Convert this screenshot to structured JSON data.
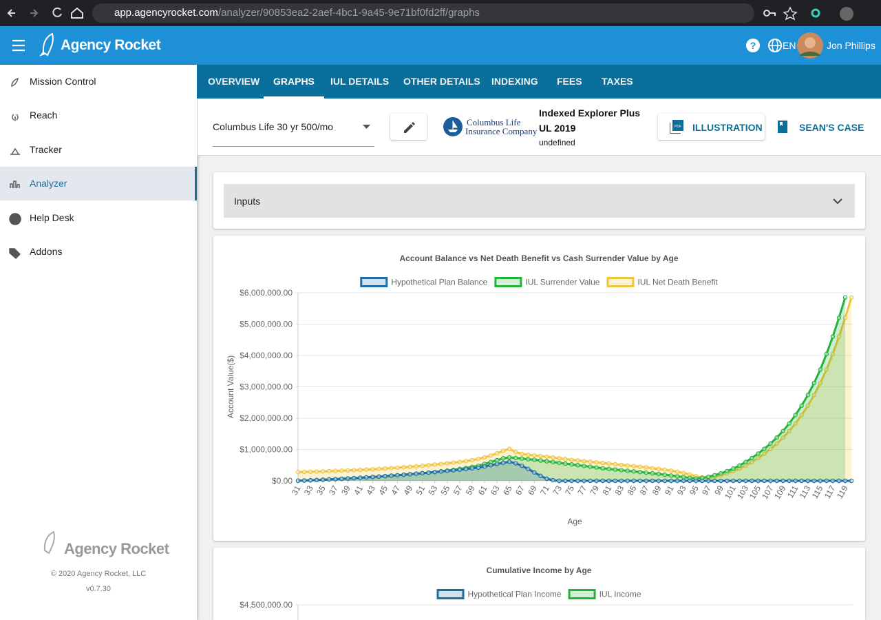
{
  "browser": {
    "url_host": "app.agencyrocket.com",
    "url_path": "/analyzer/90853ea2-2aef-4bc1-9a45-9e71bf0fd2ff/graphs"
  },
  "header": {
    "logo": "Agency Rocket",
    "language": "EN",
    "user": "Jon Phillips"
  },
  "sidebar": {
    "items": [
      "Mission Control",
      "Reach",
      "Tracker",
      "Analyzer",
      "Help Desk",
      "Addons"
    ],
    "active": 3,
    "footer_logo": "Agency Rocket",
    "copyright": "© 2020 Agency Rocket, LLC",
    "version": "v0.7.30"
  },
  "tabs": {
    "items": [
      "OVERVIEW",
      "GRAPHS",
      "IUL DETAILS",
      "OTHER DETAILS",
      "INDEXING",
      "FEES",
      "TAXES"
    ],
    "active": 1
  },
  "toolbar": {
    "select": "Columbus Life 30 yr 500/mo",
    "company_line1": "Columbus Life",
    "company_line2": "Insurance Company",
    "product": "Indexed Explorer Plus UL 2019",
    "product_sub": "undefined",
    "button_illustration": "ILLUSTRATION",
    "button_case": "SEAN'S CASE"
  },
  "inputs": {
    "title": "Inputs"
  },
  "chart_data": [
    {
      "type": "line",
      "title": "Account Balance vs Net Death Benefit vs Cash Surrender Value by Age",
      "x_label": "Age",
      "y_label": "Account Value($)",
      "x": [
        31,
        32,
        33,
        34,
        35,
        36,
        37,
        38,
        39,
        40,
        41,
        42,
        43,
        44,
        45,
        46,
        47,
        48,
        49,
        50,
        51,
        52,
        53,
        54,
        55,
        56,
        57,
        58,
        59,
        60,
        61,
        62,
        63,
        64,
        65,
        66,
        67,
        68,
        69,
        70,
        71,
        72,
        73,
        74,
        75,
        76,
        77,
        78,
        79,
        80,
        81,
        82,
        83,
        84,
        85,
        86,
        87,
        88,
        89,
        90,
        91,
        92,
        93,
        94,
        95,
        96,
        97,
        98,
        99,
        100,
        101,
        102,
        103,
        104,
        105,
        106,
        107,
        108,
        109,
        110,
        111,
        112,
        113,
        114,
        115,
        116,
        117,
        118,
        119,
        120
      ],
      "xlim": [
        31,
        120
      ],
      "xticks": [
        31,
        33,
        35,
        37,
        39,
        41,
        43,
        45,
        47,
        49,
        51,
        53,
        55,
        57,
        59,
        61,
        63,
        65,
        67,
        69,
        71,
        73,
        75,
        77,
        79,
        81,
        83,
        85,
        87,
        89,
        91,
        93,
        95,
        97,
        99,
        101,
        103,
        105,
        107,
        109,
        111,
        113,
        115,
        117,
        119
      ],
      "ylim": [
        0,
        6000000
      ],
      "yticks": [
        {
          "value": 0,
          "label": "$0.00"
        },
        {
          "value": 1000000,
          "label": "$1,000,000.00"
        },
        {
          "value": 2000000,
          "label": "$2,000,000.00"
        },
        {
          "value": 3000000,
          "label": "$3,000,000.00"
        },
        {
          "value": 4000000,
          "label": "$4,000,000.00"
        },
        {
          "value": 5000000,
          "label": "$5,000,000.00"
        },
        {
          "value": 6000000,
          "label": "$6,000,000.00"
        }
      ],
      "grid": true,
      "series": [
        {
          "name": "Hypothetical Plan Balance",
          "color": "#1f6ea3",
          "values": [
            5000,
            12000,
            20000,
            28000,
            37000,
            46000,
            56000,
            66000,
            77000,
            88000,
            100000,
            112000,
            125000,
            138000,
            152000,
            166000,
            181000,
            196000,
            212000,
            228000,
            245000,
            262000,
            280000,
            298000,
            317000,
            336000,
            356000,
            376000,
            397000,
            418000,
            460000,
            500000,
            540000,
            575000,
            610000,
            560000,
            480000,
            380000,
            270000,
            160000,
            70000,
            20000,
            0,
            0,
            0,
            0,
            0,
            0,
            0,
            0,
            0,
            0,
            0,
            0,
            0,
            0,
            0,
            0,
            0,
            0,
            0,
            0,
            0,
            0,
            0,
            0,
            0,
            0,
            0,
            0,
            0,
            0,
            0,
            0,
            0,
            0,
            0,
            0,
            0,
            0,
            0,
            0,
            0,
            0,
            0,
            0,
            0,
            0,
            0,
            0
          ]
        },
        {
          "name": "IUL Surrender Value",
          "color": "#22b33a",
          "values": [
            2000,
            9000,
            17000,
            25000,
            34000,
            43000,
            53000,
            63000,
            74000,
            85000,
            97000,
            109000,
            122000,
            135000,
            149000,
            163000,
            178000,
            194000,
            210000,
            227000,
            245000,
            264000,
            284000,
            305000,
            327000,
            350000,
            380000,
            410000,
            445000,
            480000,
            540000,
            600000,
            660000,
            720000,
            750000,
            730000,
            710000,
            690000,
            670000,
            650000,
            625000,
            600000,
            575000,
            550000,
            525000,
            500000,
            475000,
            450000,
            425000,
            400000,
            380000,
            360000,
            340000,
            320000,
            300000,
            280000,
            260000,
            240000,
            220000,
            195000,
            170000,
            145000,
            120000,
            95000,
            75000,
            95000,
            130000,
            180000,
            240000,
            310000,
            390000,
            490000,
            600000,
            730000,
            870000,
            1020000,
            1190000,
            1380000,
            1590000,
            1830000,
            2100000,
            2400000,
            2740000,
            3120000,
            3550000,
            4050000,
            4600000,
            5200000,
            5850000,
            null
          ]
        },
        {
          "name": "IUL Net Death Benefit",
          "color": "#f0c43c",
          "values": [
            280000,
            285000,
            290000,
            296000,
            302000,
            309000,
            316000,
            324000,
            332000,
            341000,
            350000,
            360000,
            371000,
            382000,
            394000,
            407000,
            420000,
            434000,
            449000,
            465000,
            482000,
            500000,
            519000,
            539000,
            560000,
            582000,
            605000,
            630000,
            660000,
            700000,
            750000,
            810000,
            880000,
            960000,
            1020000,
            920000,
            860000,
            830000,
            810000,
            790000,
            770000,
            745000,
            720000,
            695000,
            670000,
            650000,
            630000,
            610000,
            590000,
            570000,
            550000,
            530000,
            510000,
            490000,
            470000,
            450000,
            430000,
            405000,
            380000,
            355000,
            325000,
            290000,
            250000,
            200000,
            150000,
            110000,
            95000,
            130000,
            180000,
            240000,
            310000,
            390000,
            490000,
            600000,
            730000,
            870000,
            1020000,
            1190000,
            1380000,
            1590000,
            1830000,
            2100000,
            2400000,
            2740000,
            3120000,
            3550000,
            4050000,
            4600000,
            5200000,
            5850000
          ]
        }
      ]
    },
    {
      "type": "line",
      "title": "Cumulative Income by Age",
      "ylim": [
        0,
        4500000
      ],
      "yticks": [
        {
          "value": 4500000,
          "label": "$4,500,000.00"
        }
      ],
      "grid": true,
      "series": [
        {
          "name": "Hypothetical Plan Income",
          "color": "#1f6ea3"
        },
        {
          "name": "IUL Income",
          "color": "#22b33a"
        }
      ]
    }
  ]
}
